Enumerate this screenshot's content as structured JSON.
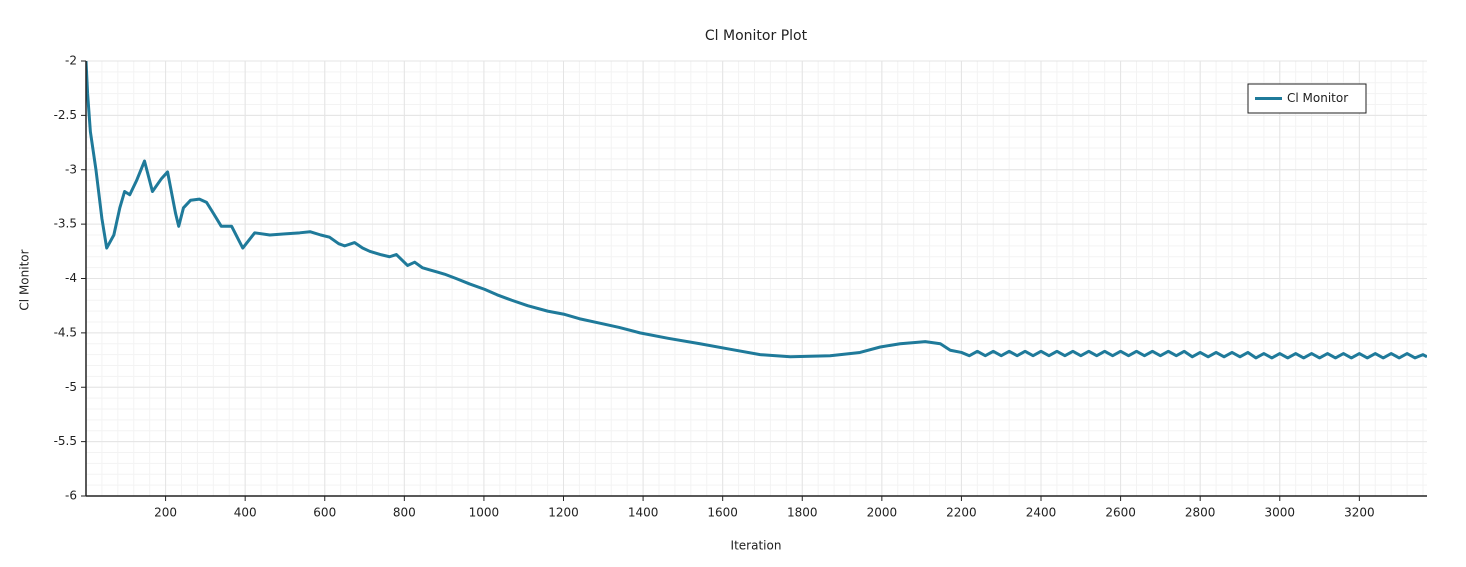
{
  "chart_data": {
    "type": "line",
    "title": "Cl Monitor Plot",
    "xlabel": "Iteration",
    "ylabel": "Cl Monitor",
    "xlim": [
      0,
      3370
    ],
    "ylim": [
      -6,
      -2
    ],
    "xticks": [
      200,
      400,
      600,
      800,
      1000,
      1200,
      1400,
      1600,
      1800,
      2000,
      2200,
      2400,
      2600,
      2800,
      3000,
      3200
    ],
    "yticks": [
      -2,
      -2.5,
      -3,
      -3.5,
      -4,
      -4.5,
      -5,
      -5.5,
      -6
    ],
    "grid": true,
    "minor_grid": true,
    "legend": "upper right",
    "series": [
      {
        "name": "Cl Monitor",
        "color": "#1f7a9a",
        "x": [
          0,
          4,
          11,
          25,
          40,
          52,
          70,
          85,
          97,
          110,
          127,
          147,
          167,
          190,
          205,
          225,
          233,
          245,
          263,
          285,
          303,
          320,
          340,
          366,
          394,
          424,
          462,
          500,
          537,
          563,
          590,
          612,
          635,
          650,
          675,
          695,
          713,
          740,
          763,
          780,
          808,
          826,
          845,
          863,
          882,
          901,
          930,
          964,
          1002,
          1033,
          1070,
          1110,
          1160,
          1203,
          1240,
          1290,
          1340,
          1392,
          1463,
          1543,
          1618,
          1694,
          1770,
          1870,
          1945,
          1996,
          2046,
          2080,
          2109,
          2147,
          2172,
          2200,
          2220,
          2240,
          2260,
          2280,
          2300,
          2320,
          2340,
          2360,
          2380,
          2400,
          2420,
          2440,
          2460,
          2480,
          2500,
          2520,
          2540,
          2560,
          2580,
          2600,
          2620,
          2640,
          2660,
          2680,
          2700,
          2720,
          2740,
          2760,
          2780,
          2800,
          2820,
          2840,
          2860,
          2880,
          2900,
          2920,
          2940,
          2960,
          2980,
          3000,
          3020,
          3040,
          3060,
          3080,
          3100,
          3120,
          3140,
          3160,
          3180,
          3200,
          3220,
          3240,
          3260,
          3280,
          3300,
          3320,
          3340,
          3360,
          3370
        ],
        "values": [
          -2.0,
          -2.3,
          -2.65,
          -3.0,
          -3.45,
          -3.72,
          -3.6,
          -3.35,
          -3.2,
          -3.23,
          -3.1,
          -2.92,
          -3.2,
          -3.08,
          -3.02,
          -3.4,
          -3.52,
          -3.35,
          -3.28,
          -3.27,
          -3.3,
          -3.4,
          -3.52,
          -3.52,
          -3.72,
          -3.58,
          -3.6,
          -3.59,
          -3.58,
          -3.57,
          -3.6,
          -3.62,
          -3.68,
          -3.7,
          -3.67,
          -3.72,
          -3.75,
          -3.78,
          -3.8,
          -3.78,
          -3.88,
          -3.85,
          -3.9,
          -3.92,
          -3.94,
          -3.96,
          -4.0,
          -4.05,
          -4.1,
          -4.15,
          -4.2,
          -4.25,
          -4.3,
          -4.33,
          -4.37,
          -4.41,
          -4.45,
          -4.5,
          -4.55,
          -4.6,
          -4.65,
          -4.7,
          -4.72,
          -4.71,
          -4.68,
          -4.63,
          -4.6,
          -4.59,
          -4.58,
          -4.6,
          -4.66,
          -4.68,
          -4.71,
          -4.67,
          -4.71,
          -4.67,
          -4.71,
          -4.67,
          -4.71,
          -4.67,
          -4.71,
          -4.67,
          -4.71,
          -4.67,
          -4.71,
          -4.67,
          -4.71,
          -4.67,
          -4.71,
          -4.67,
          -4.71,
          -4.67,
          -4.71,
          -4.67,
          -4.71,
          -4.67,
          -4.71,
          -4.67,
          -4.71,
          -4.67,
          -4.72,
          -4.68,
          -4.72,
          -4.68,
          -4.72,
          -4.68,
          -4.72,
          -4.68,
          -4.73,
          -4.69,
          -4.73,
          -4.69,
          -4.73,
          -4.69,
          -4.73,
          -4.69,
          -4.73,
          -4.69,
          -4.73,
          -4.69,
          -4.73,
          -4.69,
          -4.73,
          -4.69,
          -4.73,
          -4.69,
          -4.73,
          -4.69,
          -4.73,
          -4.7,
          -4.72
        ]
      }
    ]
  }
}
